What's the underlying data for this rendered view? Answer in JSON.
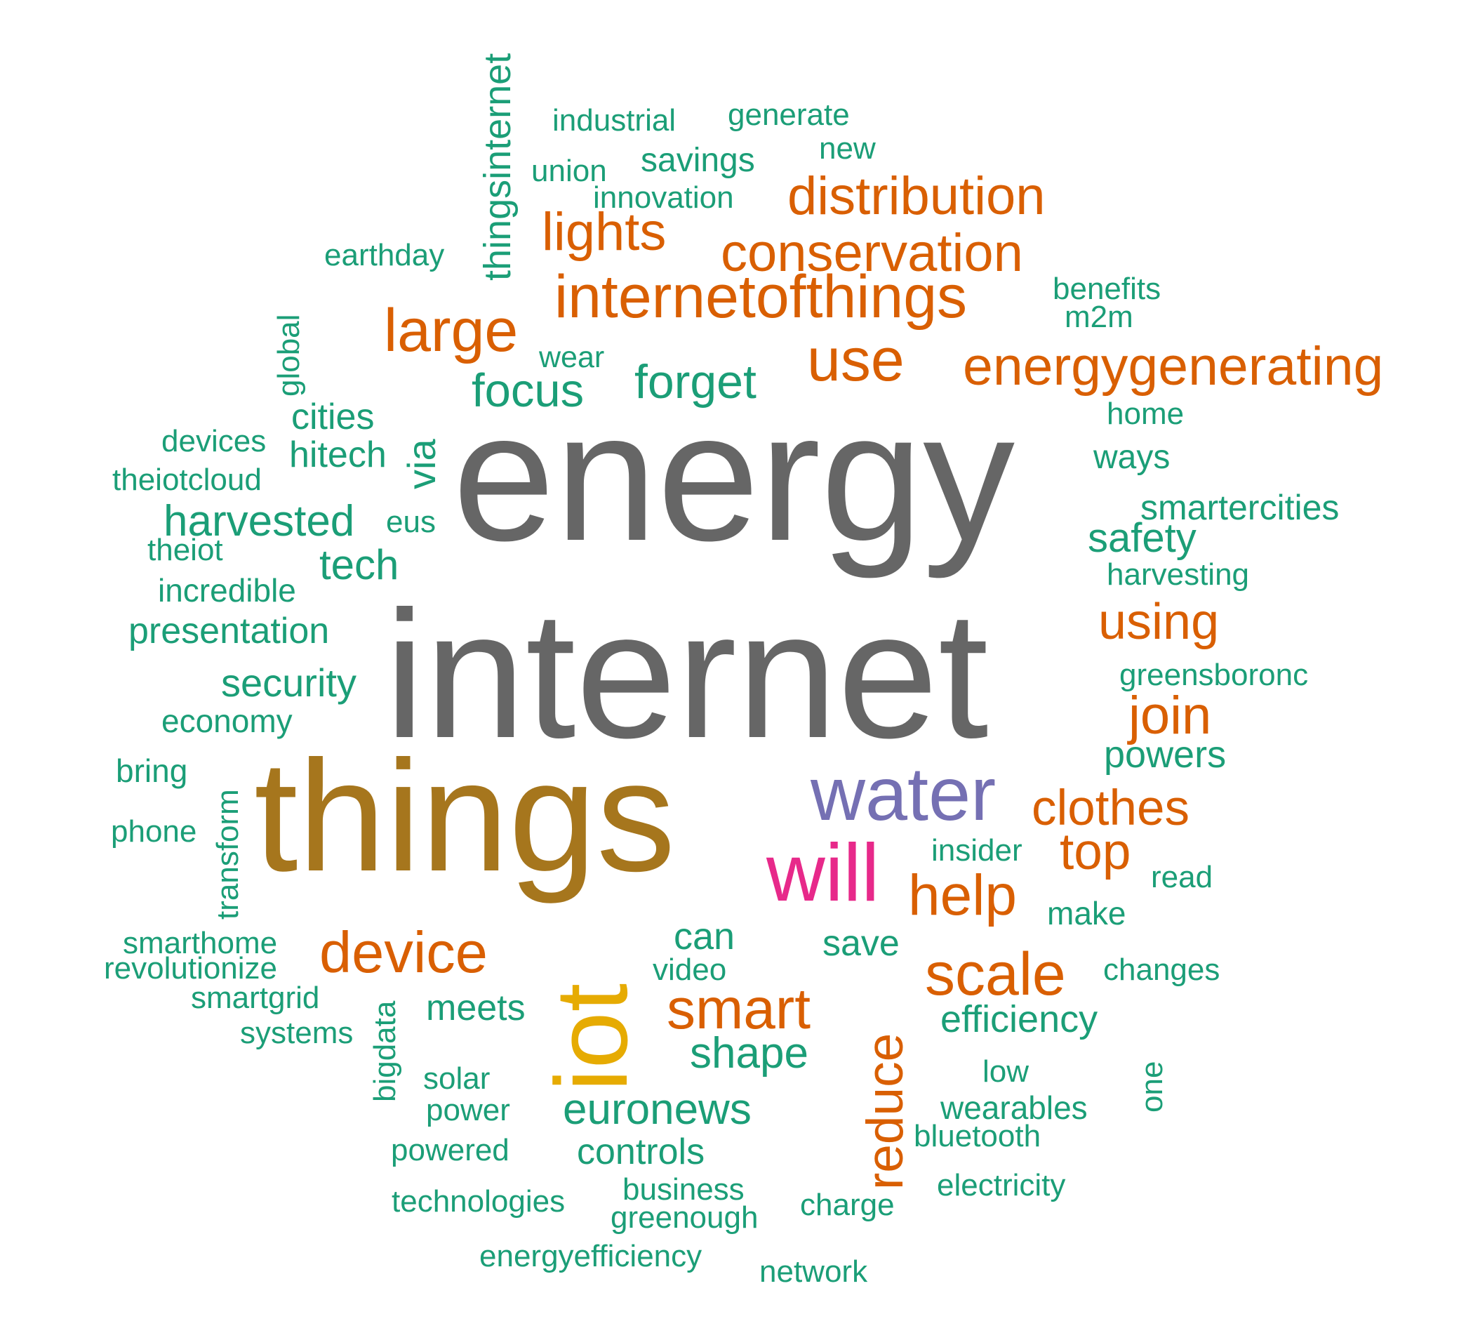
{
  "colors": {
    "teal": "#1b9e77",
    "orange": "#d95f02",
    "purple": "#7570b3",
    "magenta": "#e7298a",
    "gold": "#e6ab02",
    "brown": "#a6761d",
    "gray": "#666666"
  },
  "words": [
    {
      "text": "energy",
      "color": "#666666"
    },
    {
      "text": "internet",
      "color": "#666666"
    },
    {
      "text": "things",
      "color": "#a6761d"
    },
    {
      "text": "iot",
      "color": "#e6ab02"
    },
    {
      "text": "water",
      "color": "#7570b3"
    },
    {
      "text": "will",
      "color": "#e7298a"
    },
    {
      "text": "internetofthings",
      "color": "#d95f02"
    },
    {
      "text": "energygenerating",
      "color": "#d95f02"
    },
    {
      "text": "distribution",
      "color": "#d95f02"
    },
    {
      "text": "conservation",
      "color": "#d95f02"
    },
    {
      "text": "lights",
      "color": "#d95f02"
    },
    {
      "text": "large",
      "color": "#d95f02"
    },
    {
      "text": "use",
      "color": "#d95f02"
    },
    {
      "text": "using",
      "color": "#d95f02"
    },
    {
      "text": "join",
      "color": "#d95f02"
    },
    {
      "text": "clothes",
      "color": "#d95f02"
    },
    {
      "text": "top",
      "color": "#d95f02"
    },
    {
      "text": "help",
      "color": "#d95f02"
    },
    {
      "text": "device",
      "color": "#d95f02"
    },
    {
      "text": "smart",
      "color": "#d95f02"
    },
    {
      "text": "scale",
      "color": "#d95f02"
    },
    {
      "text": "reduce",
      "color": "#d95f02"
    },
    {
      "text": "thingsinternet",
      "color": "#1b9e77"
    },
    {
      "text": "industrial",
      "color": "#1b9e77"
    },
    {
      "text": "generate",
      "color": "#1b9e77"
    },
    {
      "text": "new",
      "color": "#1b9e77"
    },
    {
      "text": "savings",
      "color": "#1b9e77"
    },
    {
      "text": "union",
      "color": "#1b9e77"
    },
    {
      "text": "innovation",
      "color": "#1b9e77"
    },
    {
      "text": "earthday",
      "color": "#1b9e77"
    },
    {
      "text": "benefits",
      "color": "#1b9e77"
    },
    {
      "text": "m2m",
      "color": "#1b9e77"
    },
    {
      "text": "global",
      "color": "#1b9e77"
    },
    {
      "text": "wear",
      "color": "#1b9e77"
    },
    {
      "text": "focus",
      "color": "#1b9e77"
    },
    {
      "text": "forget",
      "color": "#1b9e77"
    },
    {
      "text": "cities",
      "color": "#1b9e77"
    },
    {
      "text": "home",
      "color": "#1b9e77"
    },
    {
      "text": "devices",
      "color": "#1b9e77"
    },
    {
      "text": "hitech",
      "color": "#1b9e77"
    },
    {
      "text": "via",
      "color": "#1b9e77"
    },
    {
      "text": "ways",
      "color": "#1b9e77"
    },
    {
      "text": "theiotcloud",
      "color": "#1b9e77"
    },
    {
      "text": "smartercities",
      "color": "#1b9e77"
    },
    {
      "text": "harvested",
      "color": "#1b9e77"
    },
    {
      "text": "eus",
      "color": "#1b9e77"
    },
    {
      "text": "safety",
      "color": "#1b9e77"
    },
    {
      "text": "theiot",
      "color": "#1b9e77"
    },
    {
      "text": "tech",
      "color": "#1b9e77"
    },
    {
      "text": "harvesting",
      "color": "#1b9e77"
    },
    {
      "text": "incredible",
      "color": "#1b9e77"
    },
    {
      "text": "presentation",
      "color": "#1b9e77"
    },
    {
      "text": "greensboronc",
      "color": "#1b9e77"
    },
    {
      "text": "security",
      "color": "#1b9e77"
    },
    {
      "text": "economy",
      "color": "#1b9e77"
    },
    {
      "text": "powers",
      "color": "#1b9e77"
    },
    {
      "text": "bring",
      "color": "#1b9e77"
    },
    {
      "text": "transform",
      "color": "#1b9e77"
    },
    {
      "text": "phone",
      "color": "#1b9e77"
    },
    {
      "text": "insider",
      "color": "#1b9e77"
    },
    {
      "text": "read",
      "color": "#1b9e77"
    },
    {
      "text": "make",
      "color": "#1b9e77"
    },
    {
      "text": "smarthome",
      "color": "#1b9e77"
    },
    {
      "text": "can",
      "color": "#1b9e77"
    },
    {
      "text": "save",
      "color": "#1b9e77"
    },
    {
      "text": "revolutionize",
      "color": "#1b9e77"
    },
    {
      "text": "video",
      "color": "#1b9e77"
    },
    {
      "text": "changes",
      "color": "#1b9e77"
    },
    {
      "text": "smartgrid",
      "color": "#1b9e77"
    },
    {
      "text": "meets",
      "color": "#1b9e77"
    },
    {
      "text": "bigdata",
      "color": "#1b9e77"
    },
    {
      "text": "efficiency",
      "color": "#1b9e77"
    },
    {
      "text": "systems",
      "color": "#1b9e77"
    },
    {
      "text": "shape",
      "color": "#1b9e77"
    },
    {
      "text": "low",
      "color": "#1b9e77"
    },
    {
      "text": "one",
      "color": "#1b9e77"
    },
    {
      "text": "solar",
      "color": "#1b9e77"
    },
    {
      "text": "wearables",
      "color": "#1b9e77"
    },
    {
      "text": "power",
      "color": "#1b9e77"
    },
    {
      "text": "euronews",
      "color": "#1b9e77"
    },
    {
      "text": "bluetooth",
      "color": "#1b9e77"
    },
    {
      "text": "powered",
      "color": "#1b9e77"
    },
    {
      "text": "controls",
      "color": "#1b9e77"
    },
    {
      "text": "electricity",
      "color": "#1b9e77"
    },
    {
      "text": "business",
      "color": "#1b9e77"
    },
    {
      "text": "technologies",
      "color": "#1b9e77"
    },
    {
      "text": "greenough",
      "color": "#1b9e77"
    },
    {
      "text": "charge",
      "color": "#1b9e77"
    },
    {
      "text": "energyefficiency",
      "color": "#1b9e77"
    },
    {
      "text": "network",
      "color": "#1b9e77"
    }
  ]
}
